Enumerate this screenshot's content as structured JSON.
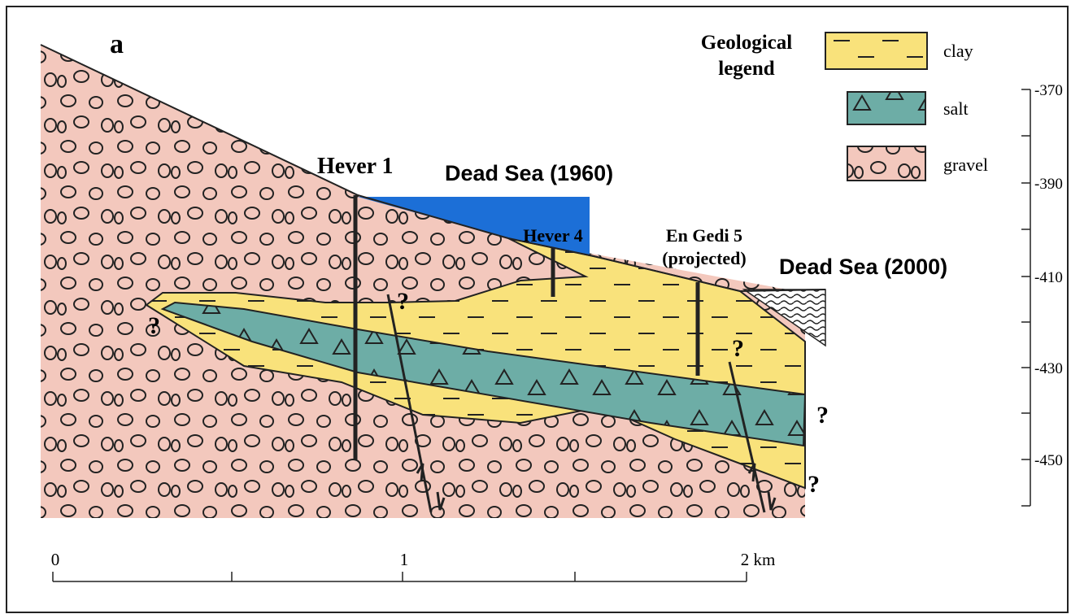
{
  "panel_label": "a",
  "legend": {
    "title": [
      "Geological",
      "legend"
    ],
    "items": [
      "clay",
      "salt",
      "gravel"
    ]
  },
  "wells": [
    {
      "label": "Hever 1"
    },
    {
      "label": "Hever 4"
    },
    {
      "label": "En Gedi 5",
      "note": "(projected)"
    }
  ],
  "water_levels": [
    "Dead Sea (1960)",
    "Dead Sea (2000)"
  ],
  "uncertainty_marks": [
    "?",
    "?",
    "?",
    "?",
    "?"
  ],
  "depth_scale": [
    "-370",
    "-390",
    "-410",
    "-430",
    "-450"
  ],
  "distance_scale": [
    "0",
    "1",
    "2 km"
  ]
}
